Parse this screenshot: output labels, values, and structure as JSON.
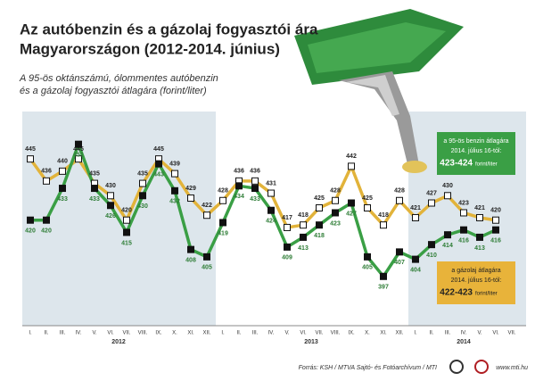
{
  "chart_data": {
    "type": "line",
    "title": [
      "Az autóbenzin és a gázolaj fogyasztói ára",
      "Magyarországon (2012-2014. június)"
    ],
    "subtitle": [
      "A 95-ös oktánszámú, ólommentes autóbenzin",
      "és a gázolaj fogyasztói átlagára (forint/liter)"
    ],
    "categories": [
      "I.",
      "II.",
      "III.",
      "IV.",
      "V.",
      "VI.",
      "VII.",
      "VIII.",
      "IX.",
      "X.",
      "XI.",
      "XII.",
      "I.",
      "II.",
      "III.",
      "IV.",
      "V.",
      "VI.",
      "VII.",
      "VIII.",
      "IX.",
      "X.",
      "XI.",
      "XII.",
      "I.",
      "II.",
      "III.",
      "IV.",
      "V.",
      "VI.",
      "VII."
    ],
    "year_labels": [
      "2012",
      "2013",
      "2014"
    ],
    "ylim": [
      390,
      460
    ],
    "series": [
      {
        "name": "95-ös benzin",
        "color": "#e2b33a",
        "values": [
          445,
          436,
          440,
          445,
          435,
          430,
          420,
          435,
          445,
          439,
          429,
          422,
          428,
          436,
          436,
          431,
          417,
          418,
          425,
          428,
          442,
          425,
          418,
          428,
          421,
          427,
          430,
          423,
          421,
          420,
          null
        ]
      },
      {
        "name": "gázolaj",
        "color": "#3a9f45",
        "values": [
          420,
          420,
          433,
          451,
          433,
          426,
          415,
          430,
          443,
          432,
          408,
          405,
          419,
          434,
          433,
          424,
          409,
          413,
          418,
          423,
          427,
          405,
          397,
          407,
          404,
          410,
          414,
          416,
          413,
          416,
          null
        ]
      }
    ],
    "annotations": [
      {
        "lines": [
          "a 95-ös benzin átlagára",
          "2014. július 16-tól:"
        ],
        "price": "423-424",
        "unit": "forint/liter"
      },
      {
        "lines": [
          "a gázolaj átlagára",
          "2014. július 16-tól:"
        ],
        "price": "422-423",
        "unit": "forint/liter"
      }
    ],
    "source": "Forrás: KSH / MTVA Sajtó- és Fotóarchívum / MTI",
    "url": "www.mti.hu"
  }
}
